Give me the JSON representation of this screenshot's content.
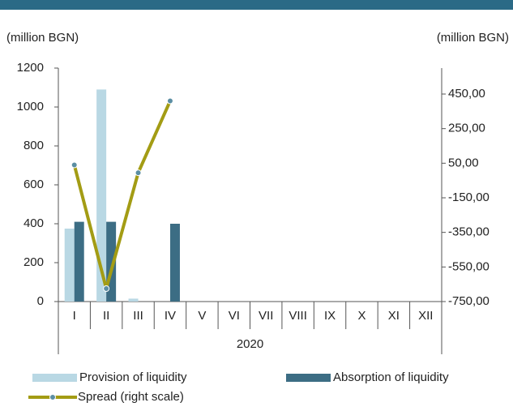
{
  "chart_data": {
    "type": "bar",
    "y_label": "(million BGN)",
    "y2_label": "(million BGN)",
    "categories": [
      "I",
      "II",
      "III",
      "IV",
      "V",
      "VI",
      "VII",
      "VIII",
      "IX",
      "X",
      "XI",
      "XII"
    ],
    "x_group_label": "2020",
    "series": [
      {
        "name": "Provision of liquidity",
        "type": "bar",
        "color": "#b9d8e4",
        "values": [
          375,
          1090,
          15,
          0,
          null,
          null,
          null,
          null,
          null,
          null,
          null,
          null
        ]
      },
      {
        "name": "Absorption of liquidity",
        "type": "bar",
        "color": "#3c6d84",
        "values": [
          410,
          410,
          0,
          400,
          null,
          null,
          null,
          null,
          null,
          null,
          null,
          null
        ]
      },
      {
        "name": "Spread (right scale)",
        "type": "line",
        "axis": "y2",
        "color": "#a39c14",
        "marker_color": "#5b8ea3",
        "values": [
          40,
          -675,
          -5,
          410,
          null,
          null,
          null,
          null,
          null,
          null,
          null,
          null
        ]
      }
    ],
    "ylim": [
      0,
      1200
    ],
    "yticks": [
      0,
      200,
      400,
      600,
      800,
      1000,
      1200
    ],
    "y2lim": [
      -750,
      600
    ],
    "y2ticks": [
      {
        "value": -750,
        "label": "-750,00"
      },
      {
        "value": -550,
        "label": "-550,00"
      },
      {
        "value": -350,
        "label": "-350,00"
      },
      {
        "value": -150,
        "label": "-150,00"
      },
      {
        "value": 50,
        "label": "50,00"
      },
      {
        "value": 250,
        "label": "250,00"
      },
      {
        "value": 450,
        "label": "450,00"
      }
    ],
    "legend": "bottom"
  }
}
